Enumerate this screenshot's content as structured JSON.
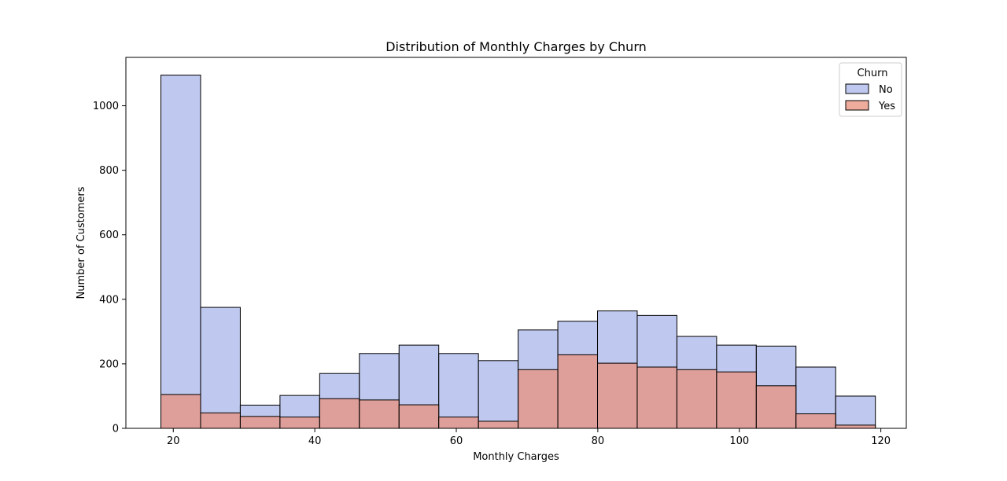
{
  "chart_data": {
    "type": "bar",
    "subtype": "overlaid-histogram",
    "title": "Distribution of Monthly Charges by Churn",
    "xlabel": "Monthly Charges",
    "ylabel": "Number of Customers",
    "xlim": [
      13.3,
      123.6
    ],
    "ylim": [
      0,
      1150
    ],
    "xticks": [
      20,
      40,
      60,
      80,
      100,
      120
    ],
    "yticks": [
      0,
      200,
      400,
      600,
      800,
      1000
    ],
    "bin_edges": [
      18.25,
      23.86,
      29.47,
      35.08,
      40.69,
      46.3,
      51.91,
      57.52,
      63.13,
      68.74,
      74.35,
      79.96,
      85.57,
      91.18,
      96.79,
      102.4,
      108.01,
      113.62,
      119.23
    ],
    "grid": false,
    "legend": {
      "title": "Churn",
      "placement": "top-right"
    },
    "series": [
      {
        "name": "No",
        "color": "#aab6e8",
        "values": [
          1095,
          375,
          72,
          102,
          170,
          232,
          258,
          232,
          210,
          305,
          332,
          364,
          350,
          285,
          258,
          255,
          190,
          100
        ]
      },
      {
        "name": "Yes",
        "color": "#e8907c",
        "values": [
          105,
          48,
          37,
          35,
          92,
          88,
          73,
          35,
          22,
          182,
          228,
          202,
          190,
          182,
          175,
          132,
          45,
          10
        ]
      }
    ]
  }
}
